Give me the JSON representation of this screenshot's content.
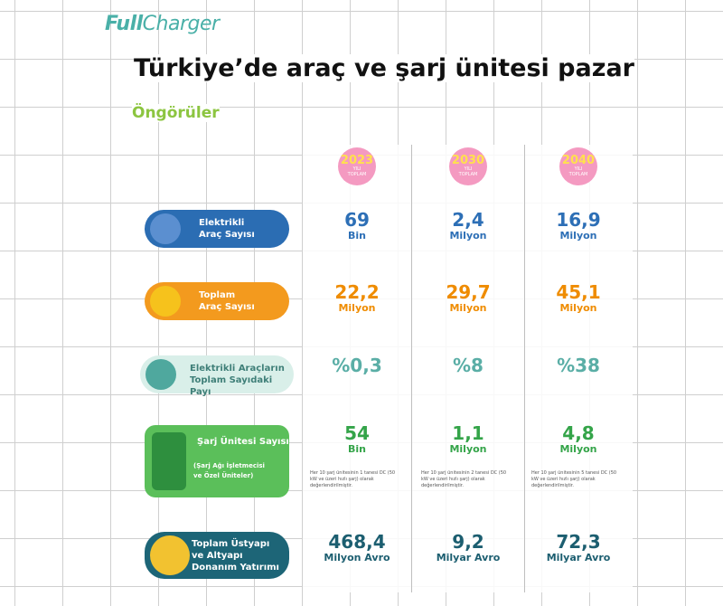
{
  "logo": {
    "prefix": "Full",
    "suffix": "Charger"
  },
  "title": "Türkiye’de araç ve şarj ünitesi pazar",
  "subtitle": "Öngörüler",
  "columns": [
    {
      "year": "2023",
      "label": "YILI TOPLAM"
    },
    {
      "year": "2030",
      "label": "YILI TOPLAM"
    },
    {
      "year": "2040",
      "label": "YILI TOPLAM"
    }
  ],
  "rows": [
    {
      "label_lines": [
        "Elektrikli",
        "Araç Sayısı"
      ],
      "cells": [
        {
          "value": "69",
          "unit": "Bin"
        },
        {
          "value": "2,4",
          "unit": "Milyon"
        },
        {
          "value": "16,9",
          "unit": "Milyon"
        }
      ]
    },
    {
      "label_lines": [
        "Toplam",
        "Araç Sayısı"
      ],
      "cells": [
        {
          "value": "22,2",
          "unit": "Milyon"
        },
        {
          "value": "29,7",
          "unit": "Milyon"
        },
        {
          "value": "45,1",
          "unit": "Milyon"
        }
      ]
    },
    {
      "label_lines": [
        "Elektrikli Araçların",
        "Toplam Sayıdaki Payı"
      ],
      "cells": [
        {
          "value": "%0,3"
        },
        {
          "value": "%8"
        },
        {
          "value": "%38"
        }
      ]
    },
    {
      "label_lines": [
        "Şarj Ünitesi Sayısı"
      ],
      "sublabel_lines": [
        "(Şarj Ağı İşletmecisi",
        "ve Özel Üniteler)"
      ],
      "cells": [
        {
          "value": "54",
          "unit": "Bin",
          "note": "Her 10 şarj ünitesinin 1 tanesi DC (50 kW ve üzeri hızlı şarj) olarak değerlendirilmiştir."
        },
        {
          "value": "1,1",
          "unit": "Milyon",
          "note": "Her 10 şarj ünitesinin 2 tanesi DC (50 kW ve üzeri hızlı şarj) olarak değerlendirilmiştir."
        },
        {
          "value": "4,8",
          "unit": "Milyon",
          "note": "Her 10 şarj ünitesinin 5 tanesi DC (50 kW ve üzeri hızlı şarj) olarak değerlendirilmiştir."
        }
      ]
    },
    {
      "label_lines": [
        "Toplam Üstyapı",
        "ve Altyapı",
        "Donanım Yatırımı"
      ],
      "cells": [
        {
          "value": "468,4",
          "unit": "Milyon Avro"
        },
        {
          "value": "9,2",
          "unit": "Milyar Avro"
        },
        {
          "value": "72,3",
          "unit": "Milyar Avro"
        }
      ]
    }
  ]
}
